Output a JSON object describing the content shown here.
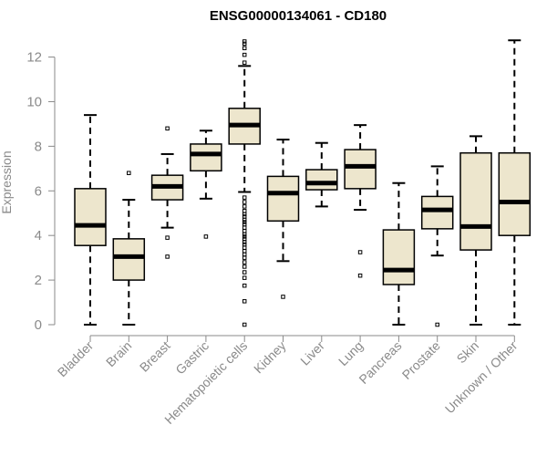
{
  "chart_data": {
    "type": "box",
    "title": "ENSG00000134061 - CD180",
    "xlabel": "",
    "ylabel": "Expression",
    "ylim": [
      0,
      12.8
    ],
    "yticks": [
      0,
      2,
      4,
      6,
      8,
      10,
      12
    ],
    "box_fill": "#ede6cd",
    "box_stroke": "#000000",
    "axis_color": "#8a8a8a",
    "categories": [
      "Bladder",
      "Brain",
      "Breast",
      "Gastric",
      "Hematopoietic cells",
      "Kidney",
      "Liver",
      "Lung",
      "Pancreas",
      "Prostate",
      "Skin",
      "Unknown / Other"
    ],
    "boxes": [
      {
        "category": "Bladder",
        "whisker_low": 0.0,
        "q1": 3.55,
        "median": 4.45,
        "q3": 6.1,
        "whisker_high": 9.4,
        "outliers": []
      },
      {
        "category": "Brain",
        "whisker_low": 0.0,
        "q1": 2.0,
        "median": 3.05,
        "q3": 3.85,
        "whisker_high": 5.6,
        "outliers": [
          6.8
        ]
      },
      {
        "category": "Breast",
        "whisker_low": 4.35,
        "q1": 5.6,
        "median": 6.2,
        "q3": 6.7,
        "whisker_high": 7.65,
        "outliers": [
          8.8,
          3.9,
          3.05
        ]
      },
      {
        "category": "Gastric",
        "whisker_low": 5.65,
        "q1": 6.9,
        "median": 7.65,
        "q3": 8.1,
        "whisker_high": 8.7,
        "outliers": [
          3.95
        ]
      },
      {
        "category": "Hematopoietic cells",
        "whisker_low": 5.95,
        "q1": 8.1,
        "median": 8.95,
        "q3": 9.7,
        "whisker_high": 11.6,
        "outliers": [
          12.7,
          12.6,
          12.4,
          12.1,
          11.75,
          5.7,
          5.5,
          5.3,
          5.1,
          4.95,
          4.85,
          4.7,
          4.6,
          4.5,
          4.35,
          4.2,
          4.05,
          3.95,
          3.85,
          3.7,
          3.6,
          3.45,
          3.3,
          3.15,
          3.0,
          2.8,
          2.6,
          2.35,
          2.1,
          1.75,
          1.05,
          0.0
        ]
      },
      {
        "category": "Kidney",
        "whisker_low": 2.85,
        "q1": 4.65,
        "median": 5.9,
        "q3": 6.65,
        "whisker_high": 8.3,
        "outliers": [
          1.25
        ]
      },
      {
        "category": "Liver",
        "whisker_low": 5.3,
        "q1": 6.05,
        "median": 6.35,
        "q3": 6.95,
        "whisker_high": 8.15,
        "outliers": []
      },
      {
        "category": "Lung",
        "whisker_low": 5.15,
        "q1": 6.1,
        "median": 7.1,
        "q3": 7.85,
        "whisker_high": 8.95,
        "outliers": [
          3.25,
          2.2
        ]
      },
      {
        "category": "Pancreas",
        "whisker_low": 0.0,
        "q1": 1.8,
        "median": 2.45,
        "q3": 4.25,
        "whisker_high": 6.35,
        "outliers": []
      },
      {
        "category": "Prostate",
        "whisker_low": 3.1,
        "q1": 4.3,
        "median": 5.15,
        "q3": 5.75,
        "whisker_high": 7.1,
        "outliers": [
          0.0
        ]
      },
      {
        "category": "Skin",
        "whisker_low": 0.0,
        "q1": 3.35,
        "median": 4.4,
        "q3": 7.7,
        "whisker_high": 8.45,
        "outliers": []
      },
      {
        "category": "Unknown / Other",
        "whisker_low": 0.0,
        "q1": 4.0,
        "median": 5.5,
        "q3": 7.7,
        "whisker_high": 12.75,
        "outliers": []
      }
    ]
  }
}
